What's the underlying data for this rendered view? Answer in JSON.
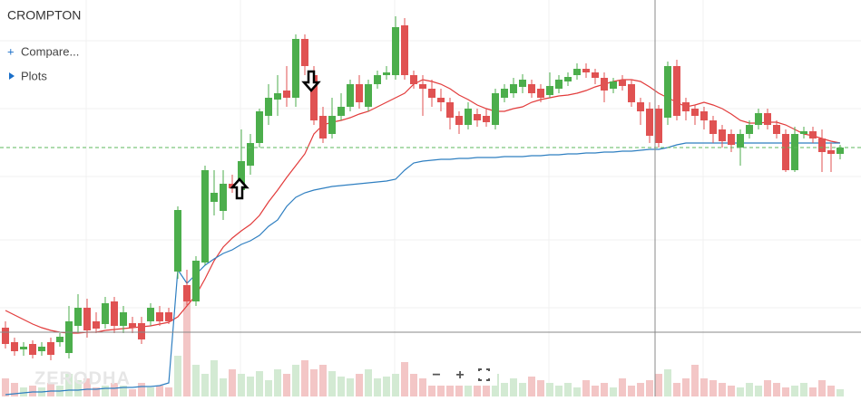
{
  "chart_data": {
    "type": "candlestick",
    "title": "CROMPTON",
    "ylim": [
      0,
      438
    ],
    "vlim": [
      0,
      130
    ],
    "up_color": "#4cae4c",
    "down_color": "#e05252",
    "up_volume_color": "#d3ead3",
    "down_volume_color": "#f3c6c6",
    "open": [
      76,
      60,
      52,
      58,
      50,
      60,
      60,
      48,
      78,
      98,
      83,
      80,
      105,
      78,
      81,
      81,
      83,
      93,
      93,
      138,
      123,
      105,
      148,
      215,
      205,
      235,
      228,
      255,
      280,
      310,
      328,
      338,
      330,
      395,
      355,
      310,
      290,
      310,
      320,
      345,
      320,
      345,
      355,
      355,
      410,
      355,
      345,
      340,
      330,
      325,
      310,
      300,
      312,
      310,
      300,
      330,
      335,
      342,
      345,
      340,
      333,
      340,
      348,
      355,
      362,
      358,
      352,
      340,
      350,
      345,
      325,
      318,
      318,
      308,
      365,
      325,
      318,
      315,
      305,
      295,
      290,
      275,
      290,
      300,
      313,
      300,
      290,
      250,
      290,
      293,
      285,
      272,
      268
    ],
    "close": [
      58,
      50,
      55,
      46,
      55,
      46,
      66,
      83,
      98,
      73,
      75,
      103,
      78,
      93,
      76,
      63,
      98,
      83,
      83,
      206,
      105,
      150,
      250,
      225,
      235,
      230,
      260,
      280,
      315,
      330,
      335,
      330,
      395,
      365,
      305,
      285,
      310,
      320,
      345,
      325,
      345,
      355,
      358,
      408,
      355,
      345,
      340,
      330,
      325,
      308,
      300,
      318,
      305,
      303,
      335,
      340,
      345,
      350,
      335,
      330,
      343,
      350,
      353,
      362,
      358,
      352,
      338,
      348,
      343,
      325,
      315,
      288,
      280,
      365,
      310,
      315,
      310,
      305,
      290,
      282,
      278,
      290,
      300,
      313,
      300,
      290,
      250,
      290,
      293,
      285,
      270,
      268,
      275
    ],
    "high": [
      83,
      65,
      60,
      62,
      60,
      65,
      70,
      100,
      113,
      108,
      93,
      110,
      110,
      100,
      88,
      88,
      103,
      100,
      98,
      210,
      140,
      155,
      255,
      250,
      250,
      245,
      295,
      290,
      318,
      345,
      355,
      365,
      400,
      400,
      365,
      320,
      330,
      335,
      350,
      355,
      350,
      360,
      365,
      420,
      418,
      360,
      355,
      350,
      340,
      330,
      315,
      325,
      318,
      318,
      340,
      345,
      352,
      356,
      350,
      345,
      358,
      355,
      358,
      368,
      368,
      362,
      358,
      352,
      355,
      350,
      330,
      325,
      322,
      370,
      372,
      330,
      322,
      320,
      310,
      300,
      295,
      295,
      305,
      318,
      318,
      305,
      295,
      298,
      298,
      298,
      295,
      280,
      278
    ],
    "low": [
      53,
      45,
      45,
      42,
      45,
      40,
      55,
      42,
      70,
      65,
      70,
      75,
      70,
      70,
      70,
      58,
      78,
      78,
      80,
      130,
      100,
      100,
      145,
      200,
      195,
      225,
      222,
      245,
      275,
      300,
      310,
      320,
      320,
      355,
      300,
      280,
      285,
      305,
      315,
      318,
      315,
      340,
      350,
      350,
      350,
      340,
      310,
      320,
      315,
      295,
      290,
      295,
      298,
      298,
      295,
      325,
      330,
      335,
      330,
      325,
      330,
      335,
      343,
      350,
      352,
      345,
      325,
      335,
      338,
      320,
      300,
      280,
      275,
      300,
      305,
      305,
      300,
      295,
      280,
      275,
      270,
      255,
      285,
      295,
      295,
      285,
      248,
      248,
      285,
      280,
      248,
      248,
      262
    ],
    "volume": [
      20,
      15,
      10,
      12,
      10,
      15,
      12,
      25,
      18,
      20,
      10,
      12,
      15,
      12,
      8,
      15,
      10,
      12,
      10,
      45,
      118,
      35,
      25,
      40,
      20,
      30,
      25,
      22,
      28,
      18,
      30,
      25,
      35,
      40,
      30,
      35,
      28,
      22,
      20,
      25,
      30,
      20,
      22,
      25,
      38,
      25,
      20,
      28,
      18,
      20,
      15,
      18,
      15,
      20,
      25,
      15,
      20,
      15,
      22,
      18,
      15,
      12,
      15,
      10,
      18,
      12,
      15,
      10,
      20,
      12,
      15,
      18,
      25,
      30,
      15,
      20,
      35,
      20,
      18,
      15,
      12,
      10,
      15,
      12,
      18,
      15,
      10,
      12,
      15,
      10,
      18,
      12,
      8
    ],
    "series": [
      {
        "color": "#e23b3b",
        "values": [
          95,
          90,
          85,
          80,
          76,
          73,
          71,
          70,
          70,
          71,
          71,
          73,
          74,
          75,
          76,
          77,
          78,
          80,
          82,
          88,
          100,
          112,
          130,
          150,
          165,
          175,
          183,
          190,
          200,
          215,
          228,
          242,
          255,
          268,
          290,
          300,
          303,
          305,
          308,
          312,
          315,
          320,
          325,
          330,
          335,
          345,
          350,
          348,
          345,
          340,
          333,
          328,
          322,
          318,
          315,
          315,
          318,
          320,
          325,
          328,
          330,
          332,
          333,
          335,
          338,
          342,
          345,
          348,
          350,
          350,
          348,
          342,
          335,
          330,
          325,
          320,
          322,
          325,
          322,
          318,
          312,
          305,
          302,
          302,
          303,
          303,
          300,
          295,
          290,
          288,
          285,
          282,
          280
        ]
      },
      {
        "color": "#2f7fc1",
        "values": [
          2,
          3,
          4,
          5,
          5,
          6,
          6,
          7,
          7,
          8,
          8,
          9,
          9,
          10,
          10,
          11,
          11,
          12,
          15,
          140,
          125,
          135,
          145,
          152,
          158,
          162,
          168,
          172,
          178,
          188,
          195,
          210,
          220,
          225,
          228,
          230,
          232,
          233,
          234,
          235,
          236,
          237,
          238,
          240,
          250,
          258,
          260,
          261,
          262,
          262,
          263,
          263,
          264,
          264,
          264,
          265,
          265,
          265,
          266,
          266,
          267,
          267,
          268,
          268,
          269,
          269,
          270,
          270,
          271,
          271,
          272,
          273,
          273,
          275,
          278,
          280,
          280,
          280,
          280,
          280,
          280,
          280,
          280,
          280,
          280,
          280,
          280,
          280,
          280,
          280,
          280,
          280,
          280
        ]
      }
    ]
  },
  "ui": {
    "compare": "Compare...",
    "plots": "Plots",
    "watermark": "ZERODHA",
    "zoom_out": "−",
    "zoom_in": "+"
  }
}
